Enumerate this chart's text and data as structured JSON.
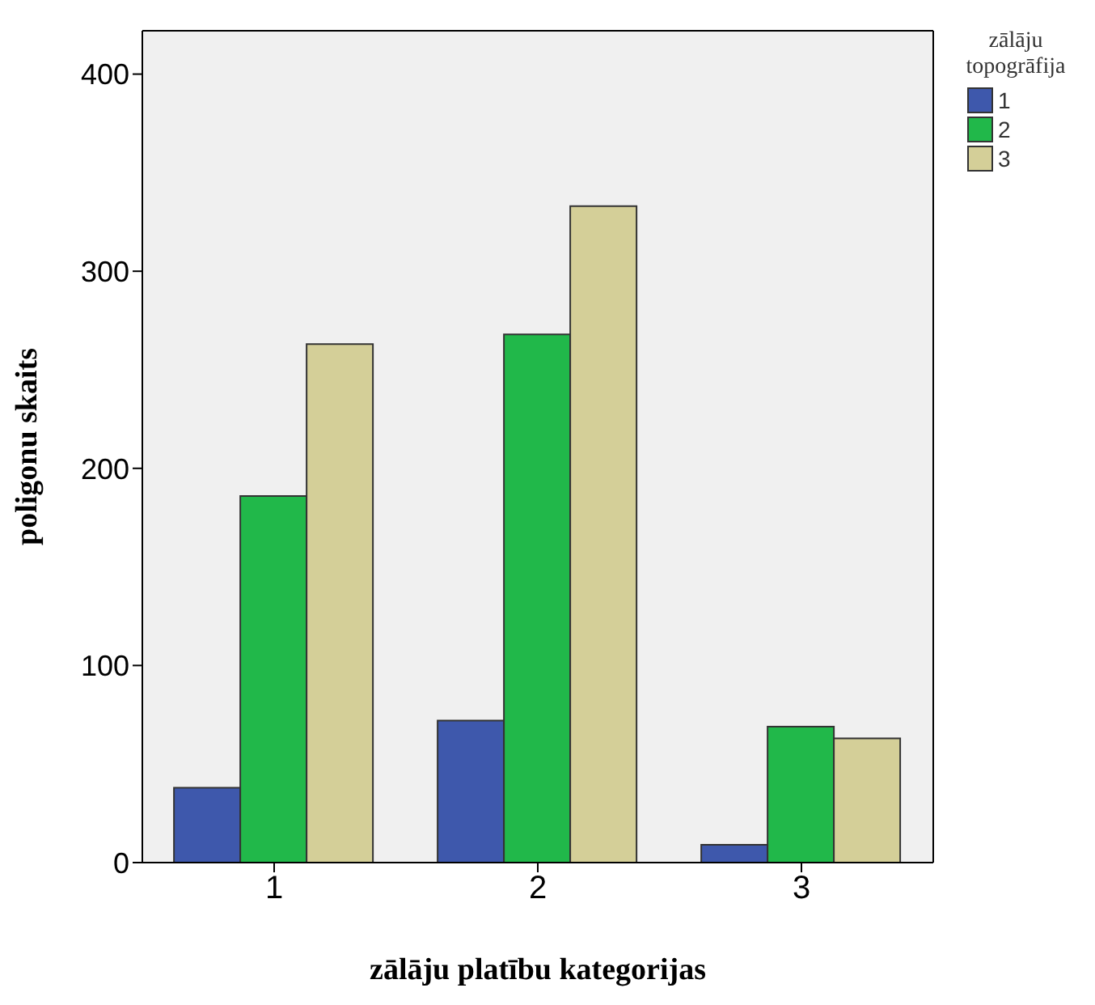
{
  "chart_data": {
    "type": "bar",
    "xlabel": "zālāju platību kategorijas",
    "ylabel": "poligonu skaits",
    "legend_title": "zālāju topogrāfija",
    "categories": [
      "1",
      "2",
      "3"
    ],
    "series": [
      {
        "name": "1",
        "color": "#3e58ac",
        "values": [
          38,
          72,
          9
        ]
      },
      {
        "name": "2",
        "color": "#21b84a",
        "values": [
          186,
          268,
          69
        ]
      },
      {
        "name": "3",
        "color": "#d4cf98",
        "values": [
          263,
          333,
          63
        ]
      }
    ],
    "ylim": [
      0,
      422
    ],
    "yticks": [
      0,
      100,
      200,
      300,
      400
    ],
    "grid": false,
    "legend": "top right"
  }
}
